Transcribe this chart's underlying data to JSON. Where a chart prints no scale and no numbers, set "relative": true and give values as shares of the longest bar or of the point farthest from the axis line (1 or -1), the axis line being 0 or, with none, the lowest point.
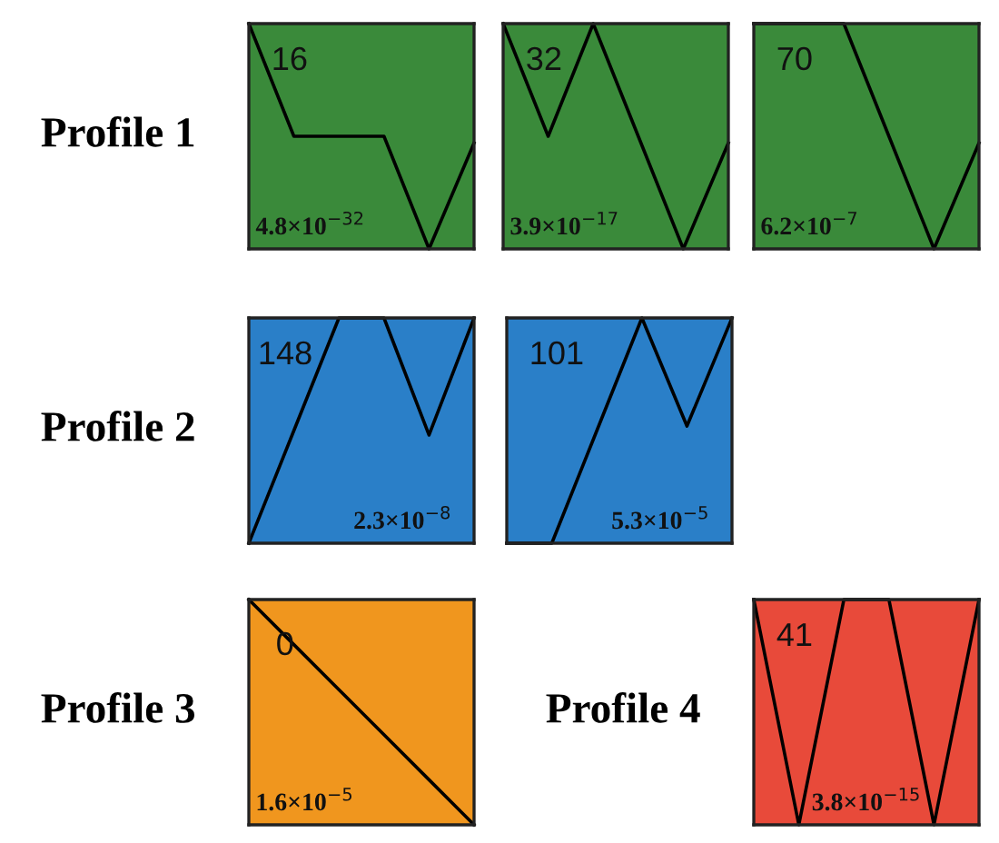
{
  "chart_data": [
    {
      "type": "line",
      "relative": true,
      "ylabel": "Profile 1",
      "categories": [
        null,
        null,
        null,
        null,
        null,
        null
      ],
      "tick_labels": false,
      "series": [
        {
          "color": "#000000",
          "values": [
            1,
            0.5,
            0.5,
            0.5,
            0,
            0.47
          ]
        }
      ],
      "annotations": [
        "16",
        "4.8×10$^{−32}$"
      ]
    },
    {
      "type": "line",
      "relative": true,
      "categories": [
        null,
        null,
        null,
        null,
        null,
        null
      ],
      "tick_labels": false,
      "series": [
        {
          "color": "#000000",
          "values": [
            1,
            0.5,
            1,
            0.5,
            0,
            0.47
          ]
        }
      ],
      "annotations": [
        "32",
        "3.9×10$^{−17}$"
      ]
    },
    {
      "type": "line",
      "relative": true,
      "categories": [
        null,
        null,
        null,
        null,
        null,
        null
      ],
      "tick_labels": false,
      "series": [
        {
          "color": "#000000",
          "values": [
            1,
            1,
            1,
            0.5,
            0,
            0.47
          ]
        }
      ],
      "annotations": [
        "70",
        "6.2×10$^{−7}$"
      ]
    },
    {
      "type": "line",
      "relative": true,
      "ylabel": "Profile 2",
      "categories": [
        null,
        null,
        null,
        null,
        null,
        null
      ],
      "tick_labels": false,
      "series": [
        {
          "color": "#000000",
          "values": [
            0,
            0.5,
            1,
            1,
            0.48,
            1
          ]
        }
      ],
      "annotations": [
        "148",
        "2.3×10$^{−8}$"
      ]
    },
    {
      "type": "line",
      "relative": true,
      "categories": [
        null,
        null,
        null,
        null,
        null,
        null
      ],
      "tick_labels": false,
      "series": [
        {
          "color": "#000000",
          "values": [
            0,
            0,
            0.5,
            1,
            0.52,
            1
          ]
        }
      ],
      "annotations": [
        "101",
        "5.3×10$^{−5}$"
      ]
    },
    {
      "type": "line",
      "relative": true,
      "ylabel": "Profile 3",
      "categories": [
        null,
        null,
        null,
        null,
        null,
        null
      ],
      "tick_labels": false,
      "series": [
        {
          "color": "#000000",
          "values": [
            1,
            0.8,
            0.6,
            0.4,
            0.2,
            0
          ]
        }
      ],
      "annotations": [
        "0",
        "1.6×10$^{−5}$"
      ]
    },
    {
      "type": "line",
      "relative": true,
      "ylabel": "Profile 4",
      "categories": [
        null,
        null,
        null,
        null,
        null,
        null
      ],
      "tick_labels": false,
      "series": [
        {
          "color": "#000000",
          "values": [
            1,
            0,
            1,
            1,
            0,
            1
          ]
        }
      ],
      "annotations": [
        "41",
        "3.8×10$^{−15}$"
      ]
    }
  ]
}
